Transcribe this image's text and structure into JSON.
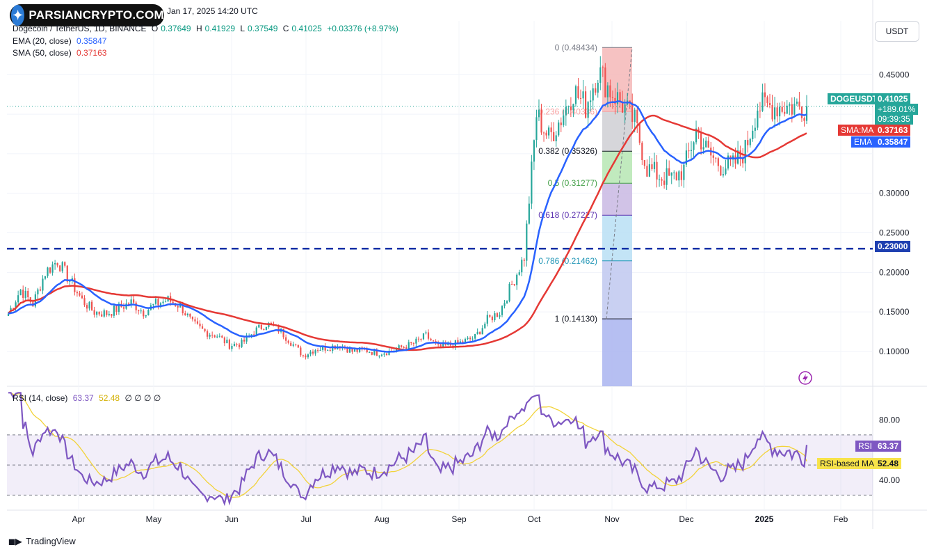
{
  "watermark": {
    "brand": "PARSIANCRYPTO.COM",
    "published": "Jan 17, 2025 14:20 UTC"
  },
  "legend": {
    "symbol": "Dogecoin / TetherUS, 1D, BINANCE",
    "open_label": "O",
    "open": "0.37649",
    "high_label": "H",
    "high": "0.41929",
    "low_label": "L",
    "low": "0.37549",
    "close_label": "C",
    "close": "0.41025",
    "change": "+0.03376 (+8.97%)",
    "ema_label": "EMA (20, close)",
    "ema_value": "0.35847",
    "sma_label": "SMA (50, close)",
    "sma_value": "0.37163",
    "rsi_label": "RSI (14, close)",
    "rsi_value": "63.37",
    "rsi_ma_value": "52.48",
    "rsi_extra": "∅ ∅ ∅ ∅"
  },
  "currency_button": "USDT",
  "price_tags": {
    "symbol": "DOGEUSDT",
    "last": "0.41025",
    "change_pct": "+189.01%",
    "countdown": "09:39:35",
    "sma_tag": "SMA:MA",
    "sma_value": "0.37163",
    "ema_tag": "EMA",
    "ema_value": "0.35847",
    "level_value": "0.23000",
    "rsi_tag": "RSI",
    "rsi_value": "63.37",
    "rsi_ma_tag": "RSI-based MA",
    "rsi_ma_value": "52.48"
  },
  "footer": {
    "brand": "TradingView"
  },
  "colors": {
    "up": "#26a69a",
    "down": "#ef5350",
    "ema": "#2962ff",
    "sma": "#e53935",
    "rsi": "#7e57c2",
    "rsi_ma": "#f2d33a"
  },
  "chart_data": {
    "type": "line",
    "title": "Dogecoin / TetherUS, 1D, BINANCE",
    "price_axis": {
      "ticks": [
        0.1,
        0.15,
        0.2,
        0.25,
        0.3,
        0.35,
        0.4,
        0.45
      ],
      "tick_labels": [
        "0.10000",
        "0.15000",
        "0.20000",
        "0.25000",
        "0.30000",
        "",
        "",
        "0.45000"
      ]
    },
    "time_axis": {
      "labels": [
        "Apr",
        "May",
        "Jun",
        "Jul",
        "Aug",
        "Sep",
        "Oct",
        "Nov",
        "Dec",
        "2025",
        "Feb"
      ]
    },
    "horizontal_level": 0.23,
    "fibonacci": [
      {
        "ratio": "0",
        "price": 0.48434,
        "label": "0 (0.48434)",
        "color": "#787b86",
        "fill": "#f4b7b7"
      },
      {
        "ratio": "0.236",
        "price": 0.40336,
        "label": "0.236 (0.40336)",
        "color": "#f7a1a1",
        "fill": "#cfcfd4"
      },
      {
        "ratio": "0.382",
        "price": 0.35326,
        "label": "0.382 (0.35326)",
        "color": "#131722",
        "fill": "#b6e6b3"
      },
      {
        "ratio": "0.5",
        "price": 0.31277,
        "label": "0.5 (0.31277)",
        "color": "#43a047",
        "fill": "#c9b8e3"
      },
      {
        "ratio": "0.618",
        "price": 0.27227,
        "label": "0.618 (0.27227)",
        "color": "#5e35b1",
        "fill": "#b8dff5"
      },
      {
        "ratio": "0.786",
        "price": 0.21462,
        "label": "0.786 (0.21462)",
        "color": "#2196b6",
        "fill": "#c0c8f0"
      },
      {
        "ratio": "1",
        "price": 0.1413,
        "label": "1 (0.14130)",
        "color": "#131722",
        "fill": "#a9b4f0"
      }
    ],
    "ohlc_anchors": {
      "x": [
        0,
        5,
        10,
        15,
        20,
        25,
        30,
        35,
        40,
        45,
        50,
        55,
        60,
        65,
        70,
        75,
        80,
        85,
        90,
        95,
        100,
        105,
        110,
        115,
        120,
        125,
        130,
        135,
        140,
        145,
        150,
        155,
        160,
        165,
        170,
        175,
        180,
        185,
        190,
        195,
        200,
        205,
        210,
        215,
        220,
        225,
        230,
        235,
        240,
        245,
        250,
        255,
        260,
        265,
        270,
        275,
        280,
        285,
        290,
        295,
        300,
        305,
        310,
        315,
        320
      ],
      "close": [
        0.148,
        0.178,
        0.16,
        0.2,
        0.215,
        0.19,
        0.165,
        0.15,
        0.148,
        0.155,
        0.162,
        0.15,
        0.16,
        0.165,
        0.158,
        0.135,
        0.125,
        0.12,
        0.108,
        0.11,
        0.125,
        0.135,
        0.128,
        0.112,
        0.095,
        0.103,
        0.105,
        0.108,
        0.1,
        0.102,
        0.098,
        0.1,
        0.105,
        0.11,
        0.12,
        0.105,
        0.108,
        0.112,
        0.118,
        0.14,
        0.15,
        0.185,
        0.22,
        0.4,
        0.37,
        0.395,
        0.43,
        0.41,
        0.455,
        0.43,
        0.412,
        0.39,
        0.332,
        0.322,
        0.318,
        0.33,
        0.38,
        0.35,
        0.335,
        0.335,
        0.355,
        0.41,
        0.41,
        0.41,
        0.41
      ]
    },
    "rsi": {
      "range": [
        20,
        100
      ],
      "levels": [
        30,
        50,
        70
      ],
      "ticks": [
        40,
        80
      ],
      "tick_labels": [
        "40.00",
        "80.00"
      ],
      "last": 63.37,
      "ma_last": 52.48
    }
  }
}
